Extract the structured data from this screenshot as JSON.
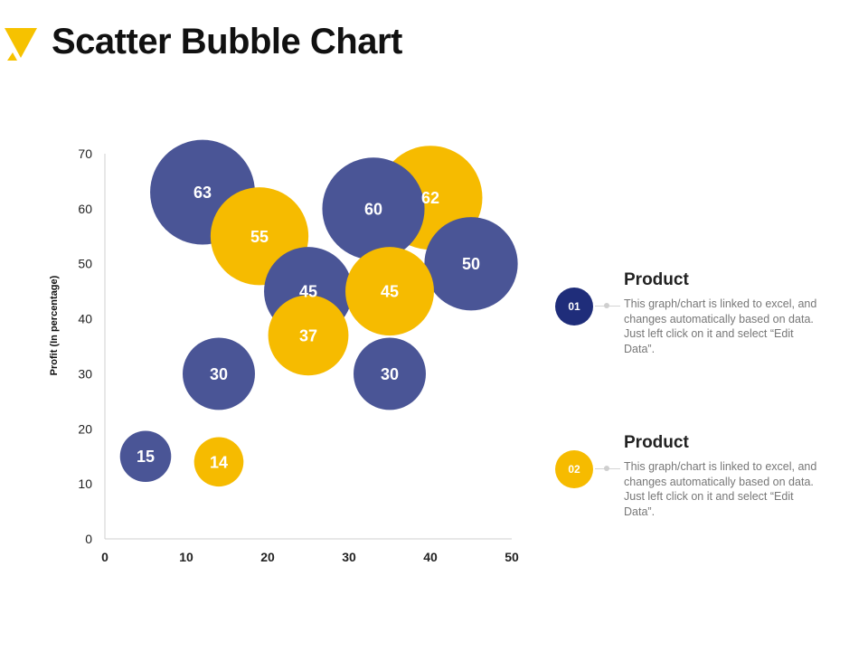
{
  "title": "Scatter Bubble Chart",
  "colors": {
    "series1": "#4a5596",
    "series2": "#f6bb00",
    "badge1": "#1f2d7a",
    "badge2": "#f6bb00",
    "logo": "#f6c200"
  },
  "chart_data": {
    "type": "scatter",
    "title": "",
    "xlabel": "",
    "ylabel": "Profit  (In percentage)",
    "xlim": [
      0,
      50
    ],
    "ylim": [
      0,
      70
    ],
    "xticks": [
      0,
      10,
      20,
      30,
      40,
      50
    ],
    "yticks": [
      0,
      10,
      20,
      30,
      40,
      50,
      60,
      70
    ],
    "series": [
      {
        "name": "Product 01",
        "color": "#4a5596",
        "points": [
          {
            "x": 12,
            "y": 63,
            "size": 63
          },
          {
            "x": 33,
            "y": 60,
            "size": 60
          },
          {
            "x": 45,
            "y": 50,
            "size": 50
          },
          {
            "x": 25,
            "y": 45,
            "size": 45
          },
          {
            "x": 14,
            "y": 30,
            "size": 30
          },
          {
            "x": 35,
            "y": 30,
            "size": 30
          },
          {
            "x": 5,
            "y": 15,
            "size": 15
          }
        ]
      },
      {
        "name": "Product 02",
        "color": "#f6bb00",
        "points": [
          {
            "x": 40,
            "y": 62,
            "size": 62
          },
          {
            "x": 19,
            "y": 55,
            "size": 55
          },
          {
            "x": 35,
            "y": 45,
            "size": 45
          },
          {
            "x": 25,
            "y": 37,
            "size": 37
          },
          {
            "x": 14,
            "y": 14,
            "size": 14
          }
        ]
      }
    ]
  },
  "legend": [
    {
      "badge": "01",
      "heading": "Product",
      "text": "This graph/chart is linked to excel, and changes automatically based on data. Just left click on it and select “Edit Data”."
    },
    {
      "badge": "02",
      "heading": "Product",
      "text": "This graph/chart is linked to excel, and changes automatically based on data. Just left click on it and select “Edit Data”."
    }
  ]
}
